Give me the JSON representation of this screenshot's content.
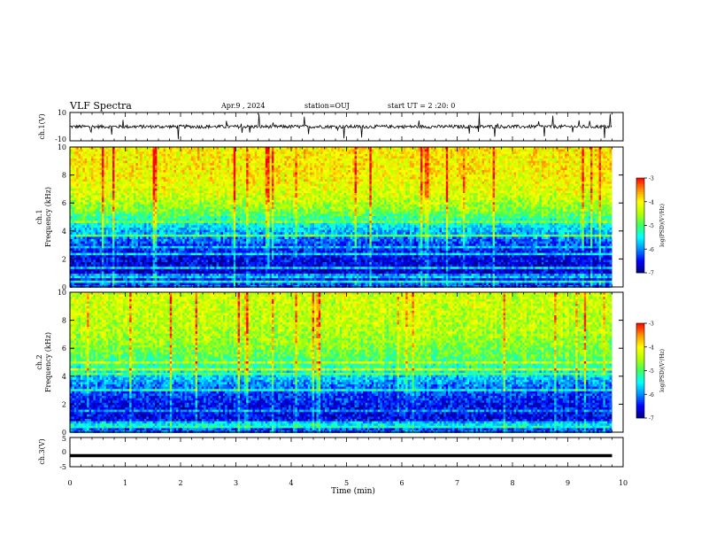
{
  "header": {
    "title": "VLF Spectra",
    "date": "Apr.9 , 2024",
    "station": "station=OUJ",
    "start": "start UT = 2 :20: 0"
  },
  "chart_data": [
    {
      "type": "line",
      "panel": "ch1-waveform",
      "ylabel": "ch.1(V)",
      "ylim": [
        -10,
        10
      ],
      "yticks": [
        "10",
        "-10"
      ],
      "xlim": [
        0,
        10
      ],
      "series": [
        {
          "baseline": 0,
          "typical_range": [
            -1.5,
            1.5
          ]
        }
      ]
    },
    {
      "type": "heatmap",
      "panel": "ch1-spectrogram",
      "ylabel": "ch.1\nFrequency (kHz)",
      "ylim": [
        0,
        10
      ],
      "yticks": [
        "0",
        "2",
        "4",
        "6",
        "8",
        "10"
      ],
      "xlim": [
        0,
        10
      ],
      "data_end_min": 9.8,
      "profile": {
        "freq_khz": [
          0,
          1,
          2,
          3,
          4,
          4.7,
          5.5,
          6.5,
          8,
          10
        ],
        "log_psd": [
          -6.2,
          -6.7,
          -6.6,
          -6.3,
          -5.8,
          -5.3,
          -4.7,
          -4.3,
          -4.0,
          -4.0
        ]
      },
      "colorbar": {
        "label": "log(PSD)(V²/Hz)",
        "ticks": [
          "-3",
          "-4",
          "-5",
          "-6",
          "-7"
        ],
        "range": [
          -7,
          -3
        ]
      }
    },
    {
      "type": "heatmap",
      "panel": "ch2-spectrogram",
      "ylabel": "ch.2\nFrequency (kHz)",
      "ylim": [
        0,
        10
      ],
      "yticks": [
        "0",
        "2",
        "4",
        "6",
        "8",
        "10"
      ],
      "xlim": [
        0,
        10
      ],
      "data_end_min": 9.8,
      "profile": {
        "freq_khz": [
          0,
          1,
          2,
          3,
          4,
          4.7,
          5.5,
          6.5,
          8,
          10
        ],
        "log_psd": [
          -6.1,
          -6.6,
          -6.5,
          -6.2,
          -5.7,
          -5.2,
          -4.9,
          -4.6,
          -4.4,
          -4.3
        ]
      },
      "colorbar": {
        "label": "log(PSD)(V²/Hz)",
        "ticks": [
          "-3",
          "-4",
          "-5",
          "-6",
          "-7"
        ],
        "range": [
          -7,
          -3
        ]
      }
    },
    {
      "type": "line",
      "panel": "ch3-waveform",
      "ylabel": "ch.3(V)",
      "ylim": [
        -5,
        5
      ],
      "yticks": [
        "5",
        "0",
        "-5"
      ],
      "xlim": [
        0,
        10
      ],
      "xlabel": "Time (min)",
      "xticks": [
        "0",
        "1",
        "2",
        "3",
        "4",
        "5",
        "6",
        "7",
        "8",
        "9",
        "10"
      ],
      "series": [
        {
          "value": -1.2
        }
      ]
    }
  ],
  "colors": {
    "colormap": [
      "#00007f",
      "#0000ff",
      "#0090ff",
      "#00ffff",
      "#3cff60",
      "#b4ff00",
      "#ffff00",
      "#ff9000",
      "#ff0000",
      "#ffffff"
    ]
  }
}
